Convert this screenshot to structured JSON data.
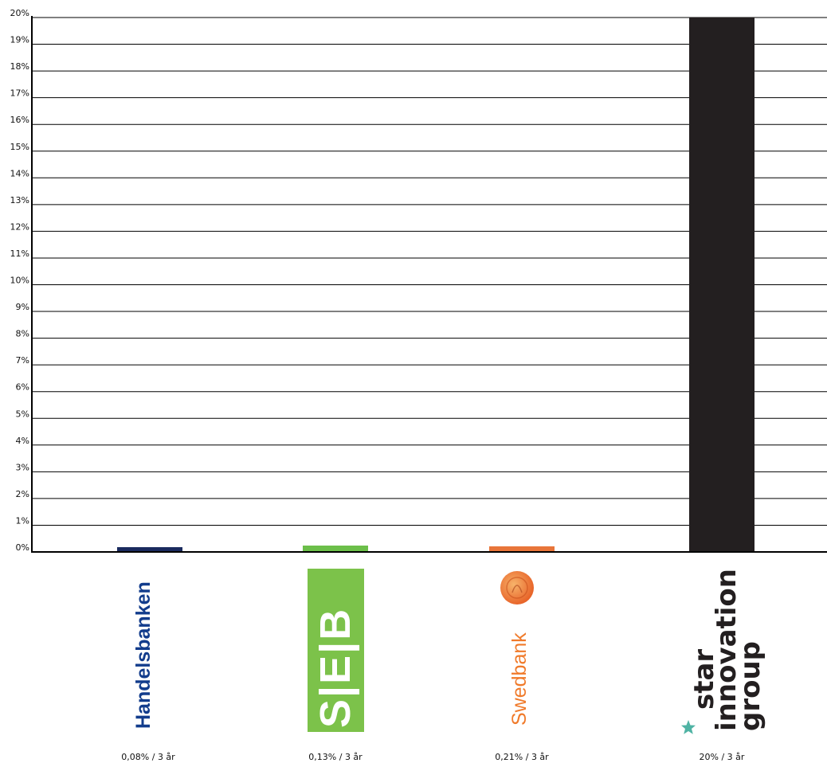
{
  "chart_data": {
    "type": "bar",
    "categories": [
      "Handelsbanken",
      "SEB",
      "Swedbank",
      "star innovation group"
    ],
    "values": [
      0.08,
      0.13,
      0.21,
      20
    ],
    "colors": [
      "#1a2a5e",
      "#6cbf4a",
      "#e8753a",
      "#231f20"
    ],
    "ylim": [
      0,
      20
    ],
    "yticks": [
      "0%",
      "1%",
      "2%",
      "3%",
      "4%",
      "5%",
      "6%",
      "7%",
      "8%",
      "9%",
      "10%",
      "11%",
      "12%",
      "13%",
      "14%",
      "15%",
      "16%",
      "17%",
      "18%",
      "19%",
      "20%"
    ],
    "captions": [
      "0,08% / 3 år",
      "0,13% / 3 år",
      "0,21% / 3 år",
      "20% / 3 år"
    ],
    "grid": true
  },
  "logos": {
    "handelsbanken": {
      "text": "Handelsbanken",
      "color": "#123c8c"
    },
    "seb": {
      "text": "S|E|B",
      "color": "#7cc24a"
    },
    "swedbank": {
      "text": "Swedbank",
      "color": "#f07a2a"
    },
    "star": {
      "line1": "star",
      "line2": "innovation",
      "line3": "group",
      "star_color": "#4fb3a4",
      "icon": "star-icon"
    }
  }
}
